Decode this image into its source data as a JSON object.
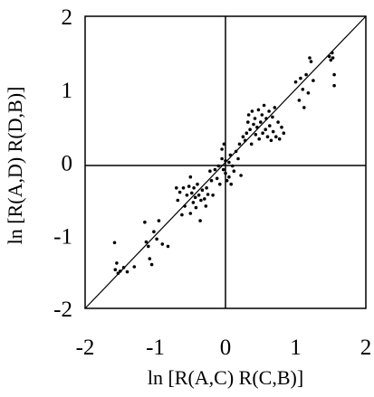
{
  "chart_data": {
    "type": "scatter",
    "title": "",
    "xlabel": "ln [R(A,C) R(C,B)]",
    "ylabel": "ln [R(A,D) R(D,B)]",
    "xlim": [
      -2,
      2
    ],
    "ylim": [
      -2,
      2
    ],
    "xticks": [
      "-2",
      "-1",
      "0",
      "1",
      "2"
    ],
    "yticks": [
      "-2",
      "-1",
      "0",
      "1",
      "2"
    ],
    "grid": false,
    "reference_lines": [
      "x = 0",
      "y = 0",
      "y = x"
    ],
    "legend": "none",
    "marker_color": "#000000",
    "points": [
      [
        -1.58,
        -1.1
      ],
      [
        -1.55,
        -1.38
      ],
      [
        -1.57,
        -1.47
      ],
      [
        -1.53,
        -1.52
      ],
      [
        -1.5,
        -1.49
      ],
      [
        -1.45,
        -1.44
      ],
      [
        -1.4,
        -1.5
      ],
      [
        -1.3,
        -1.43
      ],
      [
        -1.15,
        -0.82
      ],
      [
        -1.13,
        -1.09
      ],
      [
        -1.1,
        -1.15
      ],
      [
        -1.08,
        -1.32
      ],
      [
        -1.05,
        -1.4
      ],
      [
        -1.02,
        -0.95
      ],
      [
        -0.98,
        -1.05
      ],
      [
        -0.95,
        -0.8
      ],
      [
        -0.9,
        -1.12
      ],
      [
        -0.82,
        -1.15
      ],
      [
        -0.7,
        -0.35
      ],
      [
        -0.68,
        -0.52
      ],
      [
        -0.65,
        -0.41
      ],
      [
        -0.62,
        -0.72
      ],
      [
        -0.6,
        -0.35
      ],
      [
        -0.58,
        -0.6
      ],
      [
        -0.55,
        -0.45
      ],
      [
        -0.52,
        -0.33
      ],
      [
        -0.5,
        -0.7
      ],
      [
        -0.5,
        -0.2
      ],
      [
        -0.48,
        -0.42
      ],
      [
        -0.46,
        -0.55
      ],
      [
        -0.45,
        -0.35
      ],
      [
        -0.43,
        -0.48
      ],
      [
        -0.42,
        -0.62
      ],
      [
        -0.4,
        -0.3
      ],
      [
        -0.38,
        -0.45
      ],
      [
        -0.36,
        -0.8
      ],
      [
        -0.35,
        -0.52
      ],
      [
        -0.33,
        -0.38
      ],
      [
        -0.3,
        -0.5
      ],
      [
        -0.28,
        -0.6
      ],
      [
        -0.27,
        -0.35
      ],
      [
        -0.25,
        -0.44
      ],
      [
        -0.22,
        -0.12
      ],
      [
        -0.2,
        -0.25
      ],
      [
        -0.18,
        -0.45
      ],
      [
        -0.15,
        -0.1
      ],
      [
        -0.12,
        -0.22
      ],
      [
        -0.1,
        -0.05
      ],
      [
        -0.08,
        -0.3
      ],
      [
        -0.05,
        0.05
      ],
      [
        -0.05,
        0.18
      ],
      [
        -0.03,
        -0.1
      ],
      [
        -0.02,
        0.25
      ],
      [
        0.0,
        0.02
      ],
      [
        0.0,
        -0.15
      ],
      [
        0.02,
        -0.25
      ],
      [
        0.05,
        0.0
      ],
      [
        0.05,
        -0.2
      ],
      [
        0.07,
        0.1
      ],
      [
        0.08,
        -0.3
      ],
      [
        0.1,
        -0.05
      ],
      [
        0.12,
        -0.12
      ],
      [
        0.15,
        0.15
      ],
      [
        0.18,
        0.05
      ],
      [
        0.2,
        0.25
      ],
      [
        0.22,
        -0.18
      ],
      [
        0.25,
        0.35
      ],
      [
        0.28,
        0.3
      ],
      [
        0.3,
        0.4
      ],
      [
        0.32,
        0.55
      ],
      [
        0.33,
        0.65
      ],
      [
        0.35,
        0.45
      ],
      [
        0.37,
        0.25
      ],
      [
        0.38,
        0.7
      ],
      [
        0.4,
        0.52
      ],
      [
        0.42,
        0.6
      ],
      [
        0.43,
        0.38
      ],
      [
        0.45,
        0.48
      ],
      [
        0.47,
        0.72
      ],
      [
        0.48,
        0.32
      ],
      [
        0.5,
        0.55
      ],
      [
        0.52,
        0.65
      ],
      [
        0.53,
        0.4
      ],
      [
        0.55,
        0.78
      ],
      [
        0.57,
        0.45
      ],
      [
        0.58,
        0.6
      ],
      [
        0.6,
        0.35
      ],
      [
        0.62,
        0.7
      ],
      [
        0.63,
        0.5
      ],
      [
        0.65,
        0.3
      ],
      [
        0.67,
        0.62
      ],
      [
        0.68,
        0.42
      ],
      [
        0.7,
        0.75
      ],
      [
        0.72,
        0.35
      ],
      [
        0.75,
        0.55
      ],
      [
        0.77,
        0.32
      ],
      [
        0.8,
        0.48
      ],
      [
        0.83,
        0.4
      ],
      [
        1.0,
        1.1
      ],
      [
        1.05,
        0.85
      ],
      [
        1.07,
        1.15
      ],
      [
        1.1,
        1.0
      ],
      [
        1.12,
        0.75
      ],
      [
        1.15,
        1.2
      ],
      [
        1.18,
        0.95
      ],
      [
        1.2,
        1.43
      ],
      [
        1.22,
        1.38
      ],
      [
        1.25,
        1.12
      ],
      [
        1.48,
        1.45
      ],
      [
        1.5,
        1.4
      ],
      [
        1.52,
        1.5
      ],
      [
        1.53,
        1.43
      ],
      [
        1.55,
        1.2
      ],
      [
        1.55,
        1.05
      ]
    ]
  }
}
